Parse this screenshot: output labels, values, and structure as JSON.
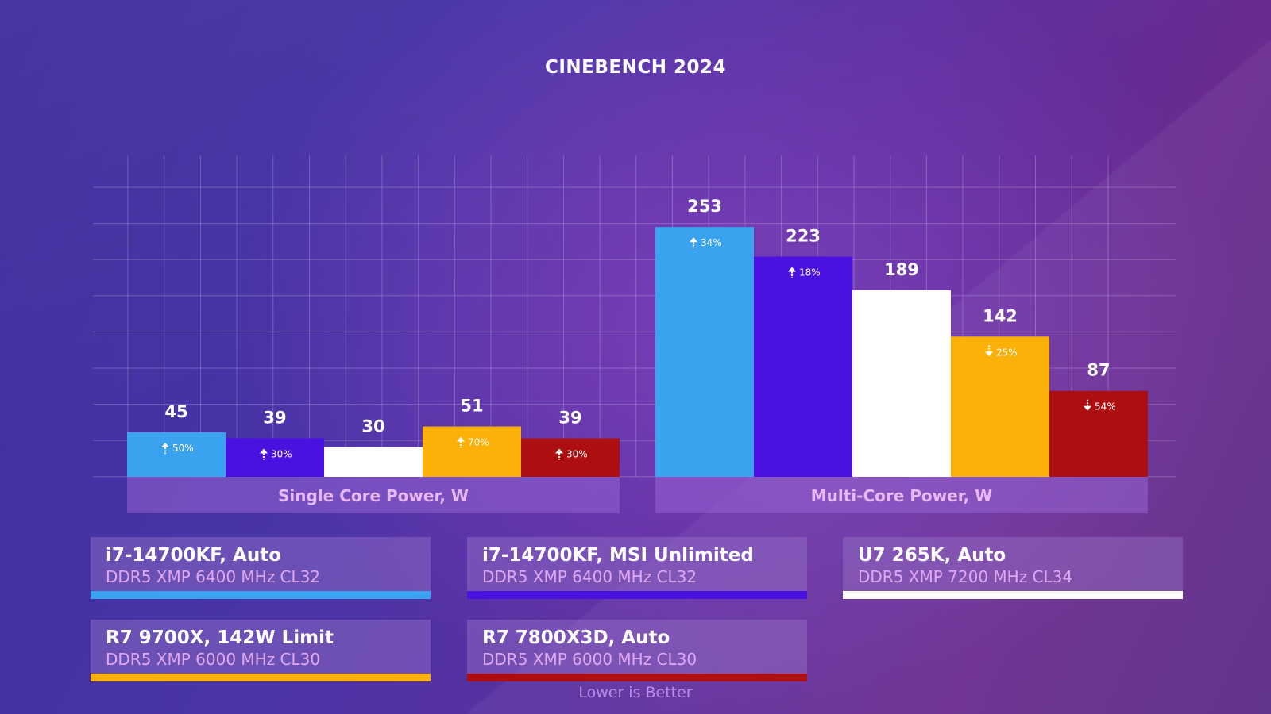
{
  "title": "CINEBENCH 2024",
  "footnote": "Lower is Better",
  "legend": [
    {
      "name": "i7-14700KF, Auto",
      "memory": "DDR5 XMP 6400 MHz CL32",
      "color": "#3aa3f0"
    },
    {
      "name": "i7-14700KF, MSI Unlimited",
      "memory": "DDR5 XMP 6400 MHz CL32",
      "color": "#4a12e0"
    },
    {
      "name": "U7 265K, Auto",
      "memory": "DDR5 XMP 7200 MHz CL34",
      "color": "#ffffff"
    },
    {
      "name": "R7 9700X, 142W Limit",
      "memory": "DDR5 XMP 6000 MHz CL30",
      "color": "#fbb10a"
    },
    {
      "name": "R7 7800X3D, Auto",
      "memory": "DDR5 XMP 6000 MHz CL30",
      "color": "#ad0f10"
    }
  ],
  "chart_data": {
    "type": "bar",
    "title": "CINEBENCH 2024",
    "categories": [
      "Single Core Power, W",
      "Multi-Core Power, W"
    ],
    "series": [
      {
        "name": "i7-14700KF, Auto",
        "values": [
          45,
          253
        ],
        "deltas": [
          "50%",
          "34%"
        ],
        "direction": [
          "up",
          "up"
        ],
        "color": "#3aa3f0"
      },
      {
        "name": "i7-14700KF, MSI Unlimited",
        "values": [
          39,
          223
        ],
        "deltas": [
          "30%",
          "18%"
        ],
        "direction": [
          "up",
          "up"
        ],
        "color": "#4a12e0"
      },
      {
        "name": "U7 265K, Auto",
        "values": [
          30,
          189
        ],
        "deltas": [
          "",
          ""
        ],
        "direction": [
          "",
          ""
        ],
        "color": "#ffffff"
      },
      {
        "name": "R7 9700X, 142W Limit",
        "values": [
          51,
          142
        ],
        "deltas": [
          "70%",
          "25%"
        ],
        "direction": [
          "up",
          "down"
        ],
        "color": "#fbb10a"
      },
      {
        "name": "R7 7800X3D, Auto",
        "values": [
          39,
          87
        ],
        "deltas": [
          "30%",
          "54%"
        ],
        "direction": [
          "up",
          "down"
        ],
        "color": "#ad0f10"
      }
    ],
    "ylim": [
      0,
      320
    ],
    "grid": true,
    "note": "Lower is Better"
  }
}
